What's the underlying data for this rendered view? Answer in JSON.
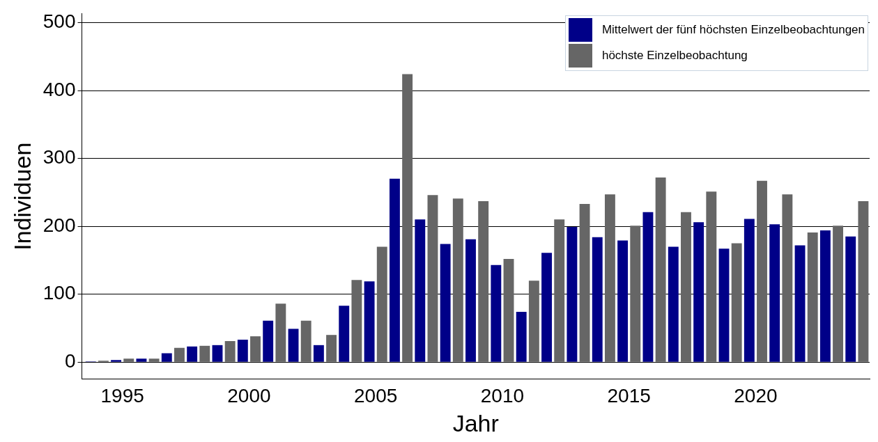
{
  "chart_data": {
    "type": "bar",
    "xlabel": "Jahr",
    "ylabel": "Individuen",
    "x": [
      1994,
      1995,
      1996,
      1997,
      1998,
      1999,
      2000,
      2001,
      2002,
      2003,
      2004,
      2005,
      2006,
      2007,
      2008,
      2009,
      2010,
      2011,
      2012,
      2013,
      2014,
      2015,
      2016,
      2017,
      2018,
      2019,
      2020,
      2021,
      2022,
      2023,
      2024
    ],
    "series": [
      {
        "name": "Mittelwert der fünf höchsten Einzelbeobachtungen",
        "color": "#000088",
        "values": [
          1,
          3,
          5,
          13,
          23,
          25,
          33,
          61,
          49,
          25,
          83,
          119,
          270,
          210,
          174,
          181,
          143,
          74,
          161,
          199,
          184,
          179,
          221,
          170,
          206,
          167,
          211,
          203,
          172,
          194,
          185
        ]
      },
      {
        "name": "höchste Einzelbeobachtung",
        "color": "#666666",
        "values": [
          2,
          5,
          5,
          21,
          24,
          31,
          38,
          86,
          61,
          40,
          121,
          170,
          424,
          246,
          241,
          237,
          152,
          120,
          210,
          233,
          247,
          201,
          272,
          221,
          251,
          175,
          267,
          247,
          191,
          201,
          237
        ]
      }
    ],
    "xlim": [
      1993.4,
      2024.5
    ],
    "xticks": [
      1995,
      2000,
      2005,
      2010,
      2015,
      2020
    ],
    "ylim": [
      -25,
      513
    ],
    "yticks": [
      0,
      100,
      200,
      300,
      400,
      500
    ],
    "grid": "y",
    "legend": "top right"
  }
}
